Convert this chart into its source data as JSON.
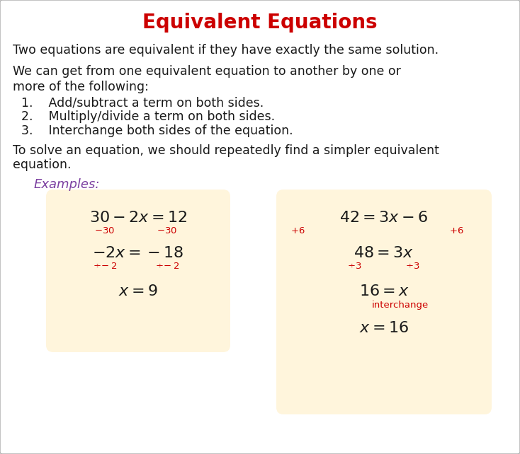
{
  "title": "Equivalent Equations",
  "title_color": "#cc0000",
  "title_fontsize": 20,
  "body_text_color": "#1a1a1a",
  "body_fontsize": 12.5,
  "examples_label": "Examples:",
  "examples_color": "#7B3FA0",
  "box_bg_color": "#FFF5DC",
  "red_color": "#cc0000",
  "black_color": "#1a1a1a",
  "fig_bg": "#ffffff",
  "border_color": "#aaaaaa",
  "para1": "Two equations are equivalent if they have exactly the same solution.",
  "para2_line1": "We can get from one equivalent equation to another by one or",
  "para2_line2": "more of the following:",
  "item1": "Add/subtract a term on both sides.",
  "item2": "Multiply/divide a term on both sides.",
  "item3": "Interchange both sides of the equation.",
  "para3_line1": "To solve an equation, we should repeatedly find a simpler equivalent",
  "para3_line2": "equation.",
  "eq_fontsize": 16,
  "sub_fontsize": 9.5
}
